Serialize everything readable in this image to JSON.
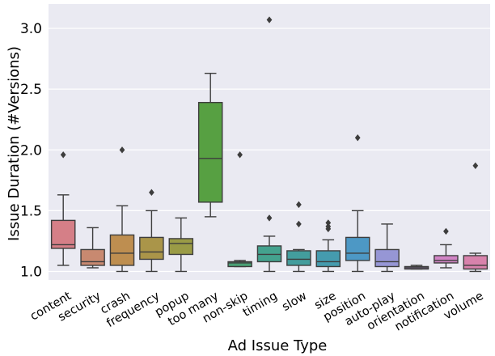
{
  "chart_data": {
    "type": "box",
    "xlabel": "Ad Issue Type",
    "ylabel": "Issue Duration (#Versions)",
    "ylim": [
      0.93,
      3.2
    ],
    "yticks": [
      1.0,
      1.5,
      2.0,
      2.5,
      3.0
    ],
    "ytick_labels": [
      "1.0",
      "1.5",
      "2.0",
      "2.5",
      "3.0"
    ],
    "grid": "horizontal",
    "categories": [
      {
        "name": "content",
        "whislo": 1.05,
        "q1": 1.19,
        "med": 1.22,
        "q3": 1.42,
        "whishi": 1.63,
        "fliers": [
          1.96
        ],
        "color": "#e88a93"
      },
      {
        "name": "security",
        "whislo": 1.03,
        "q1": 1.05,
        "med": 1.08,
        "q3": 1.18,
        "whishi": 1.36,
        "fliers": [],
        "color": "#d9957a"
      },
      {
        "name": "crash",
        "whislo": 1.0,
        "q1": 1.05,
        "med": 1.15,
        "q3": 1.3,
        "whishi": 1.54,
        "fliers": [
          2.0
        ],
        "color": "#cf9a57"
      },
      {
        "name": "frequency",
        "whislo": 1.0,
        "q1": 1.1,
        "med": 1.16,
        "q3": 1.28,
        "whishi": 1.5,
        "fliers": [
          1.65
        ],
        "color": "#b9a24f"
      },
      {
        "name": "popup",
        "whislo": 1.0,
        "q1": 1.14,
        "med": 1.23,
        "q3": 1.27,
        "whishi": 1.44,
        "fliers": [],
        "color": "#a7a94c"
      },
      {
        "name": "too many",
        "whislo": 1.45,
        "q1": 1.57,
        "med": 1.93,
        "q3": 2.39,
        "whishi": 2.63,
        "fliers": [],
        "color": "#5fae48"
      },
      {
        "name": "non-skip",
        "whislo": 1.04,
        "q1": 1.04,
        "med": 1.07,
        "q3": 1.08,
        "whishi": 1.09,
        "fliers": [
          1.96
        ],
        "color": "#4fae7f"
      },
      {
        "name": "timing",
        "whislo": 1.0,
        "q1": 1.08,
        "med": 1.14,
        "q3": 1.21,
        "whishi": 1.29,
        "fliers": [
          1.44,
          3.07
        ],
        "color": "#4ab09a"
      },
      {
        "name": "slow",
        "whislo": 1.0,
        "q1": 1.05,
        "med": 1.1,
        "q3": 1.17,
        "whishi": 1.18,
        "fliers": [
          1.39,
          1.55
        ],
        "color": "#49abab"
      },
      {
        "name": "size",
        "whislo": 1.0,
        "q1": 1.04,
        "med": 1.08,
        "q3": 1.17,
        "whishi": 1.26,
        "fliers": [
          1.35,
          1.37,
          1.4
        ],
        "color": "#4ba8bd"
      },
      {
        "name": "position",
        "whislo": 1.0,
        "q1": 1.09,
        "med": 1.15,
        "q3": 1.28,
        "whishi": 1.5,
        "fliers": [
          2.1
        ],
        "color": "#54a5d6"
      },
      {
        "name": "auto-play",
        "whislo": 1.0,
        "q1": 1.04,
        "med": 1.08,
        "q3": 1.18,
        "whishi": 1.39,
        "fliers": [],
        "color": "#a3a3e8"
      },
      {
        "name": "orientation",
        "whislo": 1.02,
        "q1": 1.02,
        "med": 1.03,
        "q3": 1.04,
        "whishi": 1.05,
        "fliers": [],
        "color": "#c39be6"
      },
      {
        "name": "notification",
        "whislo": 1.03,
        "q1": 1.07,
        "med": 1.09,
        "q3": 1.13,
        "whishi": 1.22,
        "fliers": [
          1.33
        ],
        "color": "#e38fd6"
      },
      {
        "name": "volume",
        "whislo": 1.0,
        "q1": 1.02,
        "med": 1.05,
        "q3": 1.13,
        "whishi": 1.15,
        "fliers": [
          1.87
        ],
        "color": "#eb8dbb"
      }
    ]
  }
}
